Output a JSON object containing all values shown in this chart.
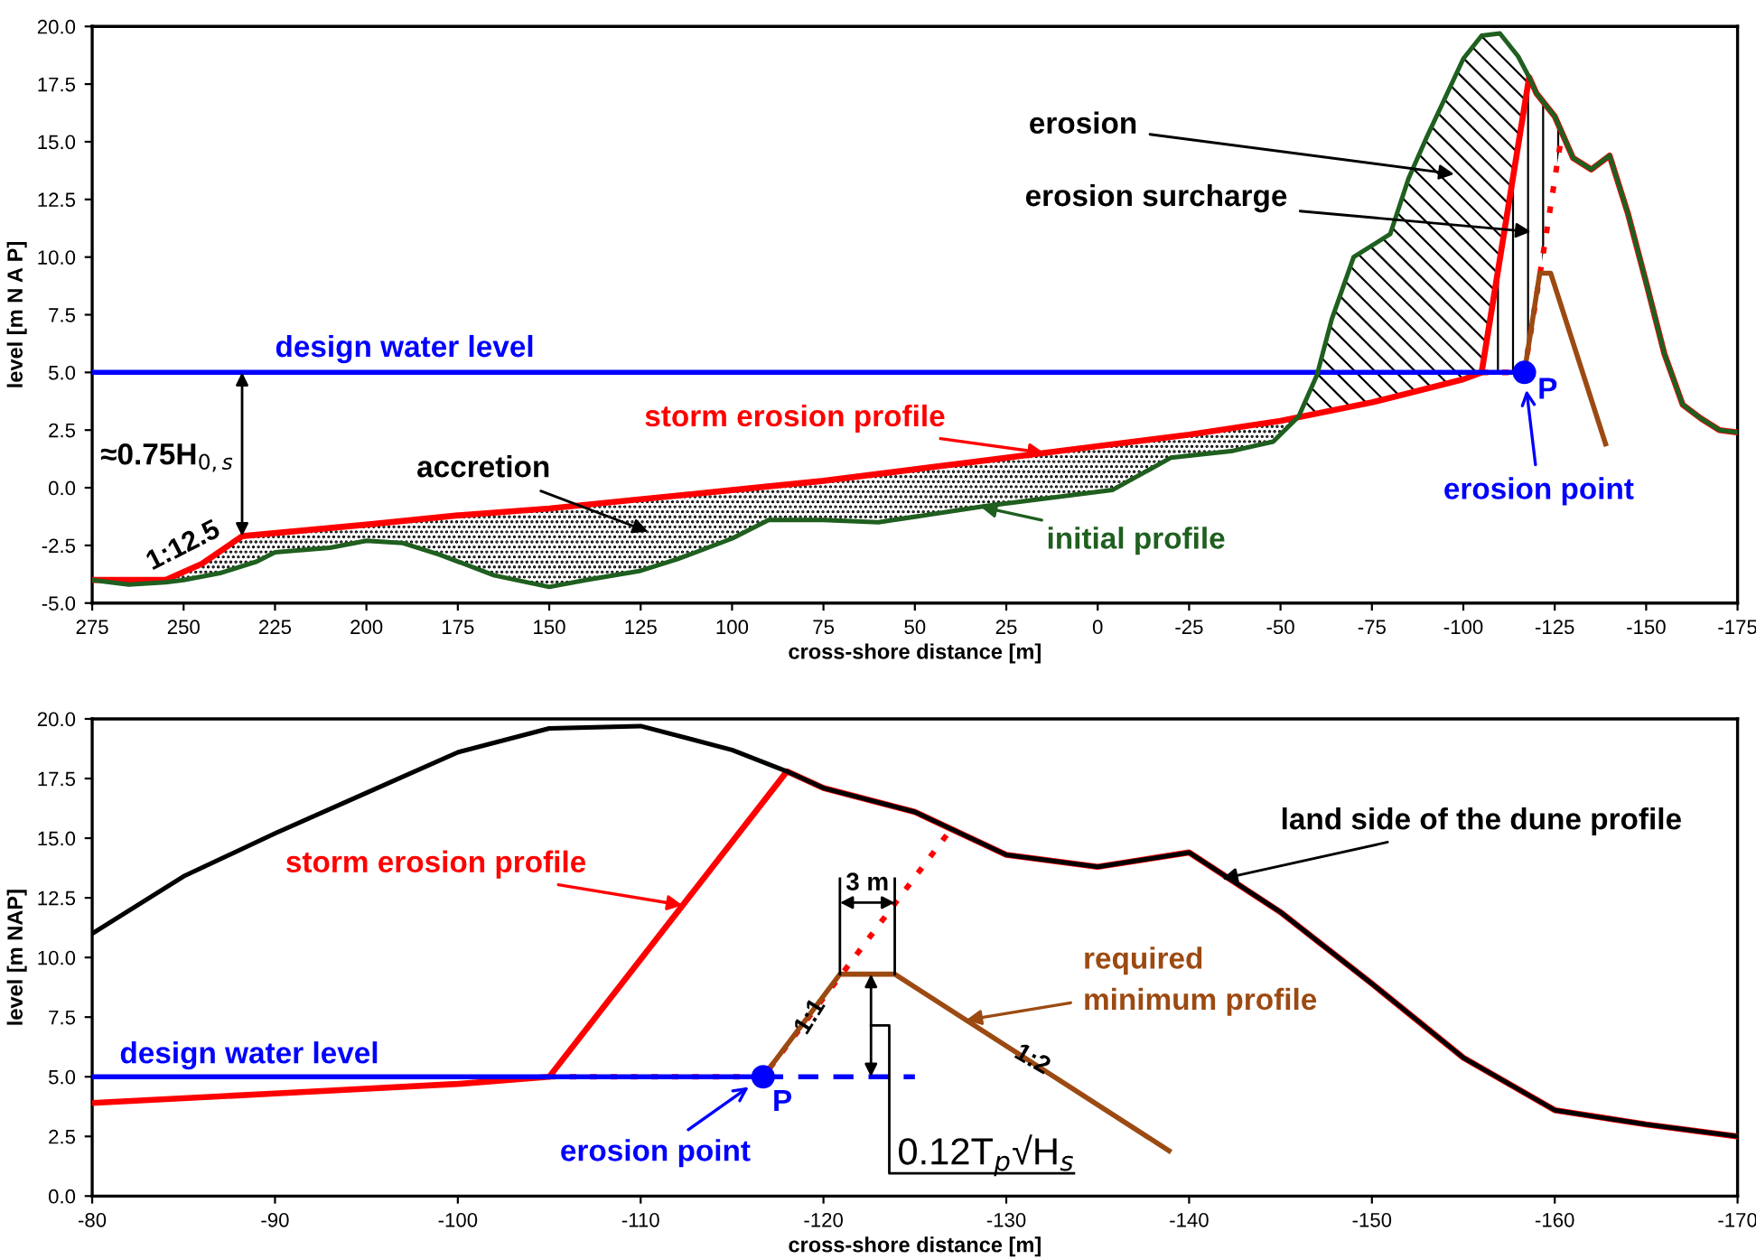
{
  "chart_data": [
    {
      "type": "line",
      "xlabel": "cross-shore distance [m]",
      "ylabel": "level [m N A P]",
      "xlim": [
        275,
        -175
      ],
      "ylim": [
        -5,
        20
      ],
      "xticks": [
        275,
        250,
        225,
        200,
        175,
        150,
        125,
        100,
        75,
        50,
        25,
        0,
        -25,
        -50,
        -75,
        -100,
        -125,
        -150,
        -175
      ],
      "yticks": [
        {
          "value": -5,
          "label": "-5.0"
        },
        {
          "value": -2.5,
          "label": "-2.5"
        },
        {
          "value": 0,
          "label": "0.0"
        },
        {
          "value": 2.5,
          "label": "2.5"
        },
        {
          "value": 5,
          "label": "5.0"
        },
        {
          "value": 7.5,
          "label": "7.5"
        },
        {
          "value": 10,
          "label": "10.0"
        },
        {
          "value": 12.5,
          "label": "12.5"
        },
        {
          "value": 15,
          "label": "15.0"
        },
        {
          "value": 17.5,
          "label": "17.5"
        },
        {
          "value": 20,
          "label": "20.0"
        }
      ],
      "series": [
        {
          "name": "initial profile",
          "color": "#1f5f1f",
          "x": [
            275,
            265,
            255,
            250,
            240,
            230,
            225,
            210,
            200,
            190,
            180,
            165,
            150,
            140,
            125,
            115,
            100,
            90,
            75,
            60,
            31,
            -4,
            -20,
            -37,
            -48,
            -55,
            -60,
            -64,
            -70,
            -80,
            -85,
            -90,
            -95,
            -100,
            -105,
            -110,
            -115,
            -118,
            -120,
            -125,
            -130,
            -135,
            -140,
            -145,
            -150,
            -155,
            -160,
            -165,
            -170,
            -175
          ],
          "values": [
            -4.0,
            -4.2,
            -4.1,
            -4.0,
            -3.7,
            -3.2,
            -2.8,
            -2.6,
            -2.3,
            -2.4,
            -2.9,
            -3.8,
            -4.3,
            -4.0,
            -3.6,
            -3.1,
            -2.2,
            -1.4,
            -1.4,
            -1.5,
            -0.8,
            -0.1,
            1.3,
            1.6,
            2.0,
            3.1,
            4.9,
            7.3,
            10.0,
            11.0,
            13.4,
            15.2,
            16.9,
            18.6,
            19.6,
            19.7,
            18.7,
            17.8,
            17.1,
            16.1,
            14.3,
            13.8,
            14.4,
            11.9,
            8.9,
            5.8,
            3.6,
            3.0,
            2.5,
            2.4
          ]
        },
        {
          "name": "storm erosion profile",
          "color": "#ff0000",
          "x": [
            275,
            255,
            245,
            234,
            200,
            175,
            150,
            125,
            100,
            75,
            50,
            25,
            0,
            -25,
            -50,
            -75,
            -80,
            -90,
            -100,
            -105,
            -118,
            -120,
            -125,
            -130,
            -135,
            -140,
            -145,
            -150,
            -155,
            -160,
            -165,
            -170,
            -175
          ],
          "values": [
            -4.0,
            -4.0,
            -3.3,
            -2.1,
            -1.6,
            -1.2,
            -0.9,
            -0.5,
            -0.1,
            0.3,
            0.8,
            1.3,
            1.8,
            2.3,
            2.9,
            3.7,
            3.9,
            4.3,
            4.7,
            5.0,
            17.8,
            17.1,
            16.1,
            14.3,
            13.8,
            14.4,
            11.9,
            8.9,
            5.8,
            3.6,
            3.0,
            2.5,
            2.4
          ]
        },
        {
          "color": "#ff0000",
          "line_style": "dotted",
          "x": [
            -105,
            -116.7,
            -121,
            -127
          ],
          "values": [
            5.0,
            5.0,
            9.3,
            15.4
          ]
        },
        {
          "color": "#9c4a12",
          "x": [
            -116.7,
            -120.9,
            -123.9,
            -138.9
          ],
          "values": [
            5.0,
            9.3,
            9.3,
            1.9
          ]
        },
        {
          "name": "design water level",
          "color": "#0000ff",
          "x": [
            275,
            -116.7
          ],
          "values": [
            5.0,
            5.0
          ]
        },
        {
          "name": "erosion point",
          "type": "scatter",
          "marker": "circle",
          "color": "#0000ff",
          "x": [
            -116.7
          ],
          "values": [
            5.0
          ]
        }
      ],
      "annotations": [
        {
          "text": "≈0.75H$_{0,s}$",
          "x": 234,
          "y": -2.1
        },
        {
          "text": "1:12.5",
          "x": 245,
          "y": -3.3
        },
        "accretion",
        "erosion",
        "erosion surcharge",
        {
          "text": "P",
          "x": -116.7,
          "y": 5.0
        }
      ]
    },
    {
      "type": "line",
      "xlabel": "cross-shore distance [m]",
      "ylabel": "level [m NAP]",
      "xlim": [
        -80,
        -170
      ],
      "ylim": [
        0,
        20
      ],
      "xticks": [
        -80,
        -90,
        -100,
        -110,
        -120,
        -130,
        -140,
        -150,
        -160,
        -170
      ],
      "yticks": [
        {
          "value": 0,
          "label": "0.0"
        },
        {
          "value": 2.5,
          "label": "2.5"
        },
        {
          "value": 5,
          "label": "5.0"
        },
        {
          "value": 7.5,
          "label": "7.5"
        },
        {
          "value": 10,
          "label": "10.0"
        },
        {
          "value": 12.5,
          "label": "12.5"
        },
        {
          "value": 15,
          "label": "15.0"
        },
        {
          "value": 17.5,
          "label": "17.5"
        },
        {
          "value": 20,
          "label": "20.0"
        }
      ],
      "series": [
        {
          "color": "#000000",
          "x": [
            -80,
            -85,
            -90,
            -95,
            -100,
            -105,
            -110,
            -115,
            -118,
            -120,
            -125,
            -130,
            -135,
            -140,
            -145,
            -150,
            -155,
            -160,
            -165,
            -170
          ],
          "values": [
            11.0,
            13.4,
            15.2,
            16.9,
            18.6,
            19.6,
            19.7,
            18.7,
            17.8,
            17.1,
            16.1,
            14.3,
            13.8,
            14.4,
            11.9,
            8.9,
            5.8,
            3.6,
            3.0,
            2.5
          ]
        },
        {
          "name": "storm erosion profile",
          "color": "#ff0000",
          "x": [
            -80,
            -90,
            -100,
            -105,
            -118,
            -120,
            -125,
            -130,
            -135,
            -140,
            -145,
            -150,
            -155,
            -160,
            -165,
            -170
          ],
          "values": [
            3.9,
            4.3,
            4.7,
            5.0,
            17.8,
            17.1,
            16.1,
            14.3,
            13.8,
            14.4,
            11.9,
            8.9,
            5.8,
            3.6,
            3.0,
            2.5
          ]
        },
        {
          "color": "#ff0000",
          "line_style": "dotted",
          "x": [
            -105,
            -116.7,
            -121,
            -127
          ],
          "values": [
            5.0,
            5.0,
            9.3,
            15.4
          ]
        },
        {
          "name": "required\nminimum profile",
          "color": "#9c4a12",
          "x": [
            -116.7,
            -120.9,
            -123.9,
            -138.9
          ],
          "values": [
            5.0,
            9.3,
            9.3,
            1.9
          ]
        },
        {
          "name": "design water level",
          "color": "#0000ff",
          "x": [
            -80,
            -116.7
          ],
          "values": [
            5.0,
            5.0
          ]
        },
        {
          "color": "#0000ff",
          "line_style": "dashed",
          "x": [
            -116.7,
            -125
          ],
          "values": [
            5.0,
            5.0
          ]
        },
        {
          "name": "erosion point",
          "type": "scatter",
          "marker": "circle",
          "color": "#0000ff",
          "x": [
            -116.7
          ],
          "values": [
            5.0
          ]
        }
      ],
      "annotations": [
        {
          "text": "3 m",
          "x": -120.9,
          "y": 9.3
        },
        "1:1",
        "1:2",
        "0.12T$_{p}$√H$_{s}$",
        {
          "text": "P",
          "x": -116.7,
          "y": 5.0
        },
        {
          "text": "land side of the dune profile",
          "x": -141.8,
          "y": 13.3
        }
      ]
    }
  ]
}
